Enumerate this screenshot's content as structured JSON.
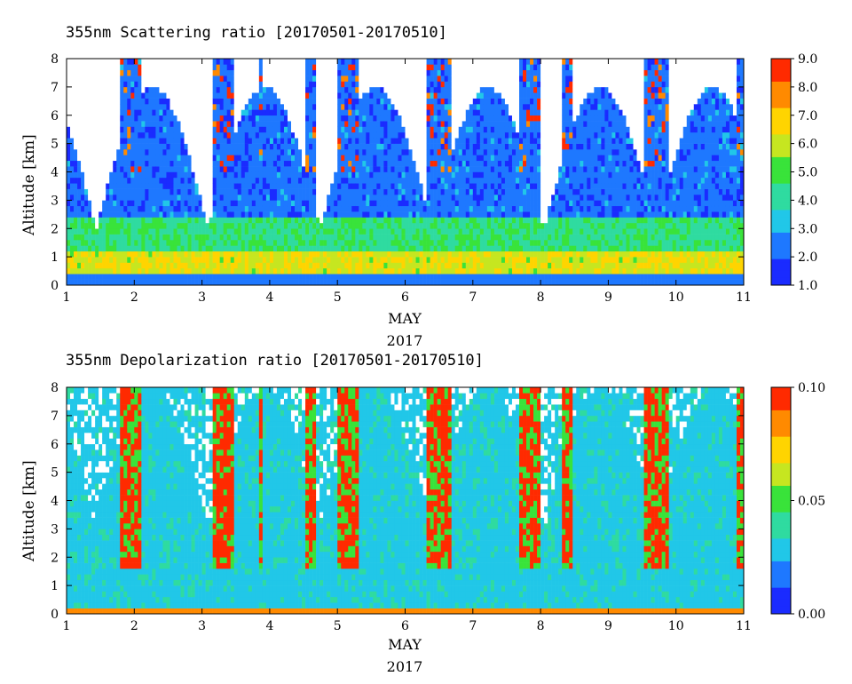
{
  "colors": {
    "scale": [
      "#1a2bff",
      "#1e78ff",
      "#21c7e8",
      "#2fdba0",
      "#39e33a",
      "#c6e620",
      "#ffd400",
      "#ff8a00",
      "#ff2a00"
    ],
    "axis": "#000000",
    "gap": "#ffffff"
  },
  "chart_data": [
    {
      "type": "heatmap",
      "title": "355nm Scattering ratio [20170501-20170510]",
      "xlabel": "MAY",
      "xlabel2": "2017",
      "ylabel": "Altitude [km]",
      "xlim": [
        1,
        11
      ],
      "ylim": [
        0,
        8
      ],
      "xticks": [
        "1",
        "2",
        "3",
        "4",
        "5",
        "6",
        "7",
        "8",
        "9",
        "10",
        "11"
      ],
      "yticks": [
        "0",
        "1",
        "2",
        "3",
        "4",
        "5",
        "6",
        "7",
        "8"
      ],
      "colorbar": {
        "range": [
          1.0,
          9.0
        ],
        "ticks": [
          "1.0",
          "2.0",
          "3.0",
          "4.0",
          "5.0",
          "6.0",
          "7.0",
          "8.0",
          "9.0"
        ]
      }
    },
    {
      "type": "heatmap",
      "title": "355nm Depolarization ratio [20170501-20170510]",
      "xlabel": "MAY",
      "xlabel2": "2017",
      "ylabel": "Altitude [km]",
      "xlim": [
        1,
        11
      ],
      "ylim": [
        0,
        8
      ],
      "xticks": [
        "1",
        "2",
        "3",
        "4",
        "5",
        "6",
        "7",
        "8",
        "9",
        "10",
        "11"
      ],
      "yticks": [
        "0",
        "1",
        "2",
        "3",
        "4",
        "5",
        "6",
        "7",
        "8"
      ],
      "colorbar": {
        "range": [
          0.0,
          0.1
        ],
        "ticks": [
          "0.00",
          "0.05",
          "0.10"
        ]
      }
    }
  ]
}
